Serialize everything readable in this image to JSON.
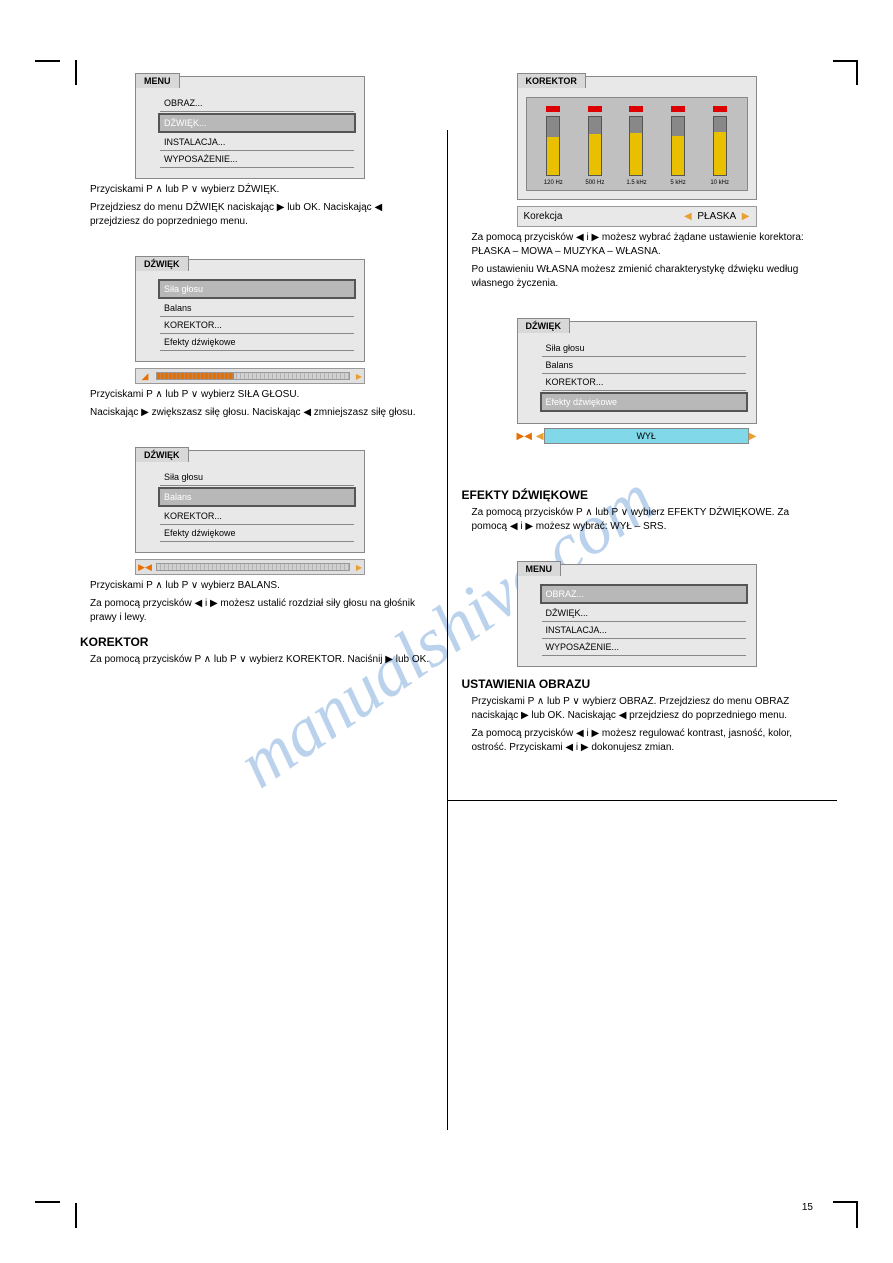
{
  "watermark": "manualshive.com",
  "page_number": "15",
  "crop_marks_color": "#000000",
  "colors": {
    "panel_bg": "#e8e8e8",
    "panel_border": "#888888",
    "selected_bg": "#b8b8b8",
    "selected_border": "#555555",
    "arrow_orange": "#e8a030",
    "slider_orange": "#e87000",
    "led_red": "#d00000",
    "eq_yellow": "#e8c000",
    "effect_cyan": "#80d8e8",
    "watermark_blue": "#1060c0"
  },
  "left": {
    "menu1": {
      "tab": "MENU",
      "items": [
        "OBRAZ...",
        "DŹWIĘK...",
        "INSTALACJA...",
        "WYPOSAŻENIE..."
      ],
      "selected_index": 1
    },
    "instr1a": "Przyciskami P ∧ lub P ∨ wybierz DŹWIĘK.",
    "instr1b": "Przejdziesz do menu DŹWIĘK naciskając ▶ lub OK. Naciskając ◀ przejdziesz do poprzedniego menu.",
    "menu2": {
      "tab": "DŹWIĘK",
      "items": [
        "Siła głosu",
        "Balans",
        "KOREKTOR...",
        "Efekty dźwiękowe"
      ],
      "selected_index": 0,
      "slider": {
        "type": "volume",
        "icon": "▲",
        "fill_pct": 40
      }
    },
    "instr2a": "Przyciskami P ∧ lub P ∨ wybierz SIŁA GŁOSU.",
    "instr2b": "Naciskając ▶ zwiększasz siłę głosu. Naciskając ◀ zmniejszasz siłę głosu.",
    "menu3": {
      "tab": "DŹWIĘK",
      "items": [
        "Siła głosu",
        "Balans",
        "KOREKTOR...",
        "Efekty dźwiękowe"
      ],
      "selected_index": 1,
      "slider": {
        "type": "balance",
        "icon": "▶◀"
      }
    },
    "instr3a": "Przyciskami P ∧ lub P ∨ wybierz BALANS.",
    "instr3b": "Za pomocą przycisków ◀ i ▶ możesz ustalić rozdział siły głosu na głośnik prawy i lewy.",
    "heading_korektor": "KOREKTOR",
    "instr4": "Za pomocą przycisków P ∧ lub P ∨ wybierz KOREKTOR. Naciśnij ▶ lub OK."
  },
  "right": {
    "korektor": {
      "tab": "KOREKTOR",
      "bands": [
        {
          "label": "120 Hz",
          "fill_pct": 65
        },
        {
          "label": "500 Hz",
          "fill_pct": 70
        },
        {
          "label": "1.5 kHz",
          "fill_pct": 72
        },
        {
          "label": "5 kHz",
          "fill_pct": 68
        },
        {
          "label": "10 kHz",
          "fill_pct": 75
        }
      ],
      "row_label": "Korekcja",
      "row_value": "PŁASKA"
    },
    "instr_k1": "Za pomocą przycisków ◀ i ▶ możesz wybrać żądane ustawienie korektora: PŁASKA – MOWA – MUZYKA – WŁASNA.",
    "instr_k2": "Po ustawieniu WŁASNA możesz zmienić charakterystykę dźwięku według własnego życzenia.",
    "menu4": {
      "tab": "DŹWIĘK",
      "items": [
        "Siła głosu",
        "Balans",
        "KOREKTOR...",
        "Efekty dźwiękowe"
      ],
      "selected_index": 3,
      "effect_value": "WYŁ"
    },
    "heading_efekty": "EFEKTY DŹWIĘKOWE",
    "instr_e": "Za pomocą przycisków P ∧ lub P ∨ wybierz EFEKTY DŹWIĘKOWE. Za pomocą ◀ i ▶ możesz wybrać: WYŁ – SRS.",
    "menu5": {
      "tab": "MENU",
      "items": [
        "OBRAZ...",
        "DŹWIĘK...",
        "INSTALACJA...",
        "WYPOSAŻENIE..."
      ],
      "selected_index": 0
    },
    "heading_obraz": "USTAWIENIA OBRAZU",
    "instr_o1": "Przyciskami P ∧ lub P ∨ wybierz OBRAZ. Przejdziesz do menu OBRAZ naciskając ▶ lub OK. Naciskając ◀ przejdziesz do poprzedniego menu.",
    "instr_o2": "Za pomocą przycisków ◀ i ▶ możesz regulować kontrast, jasność, kolor, ostrość. Przyciskami ◀ i ▶ dokonujesz zmian."
  }
}
